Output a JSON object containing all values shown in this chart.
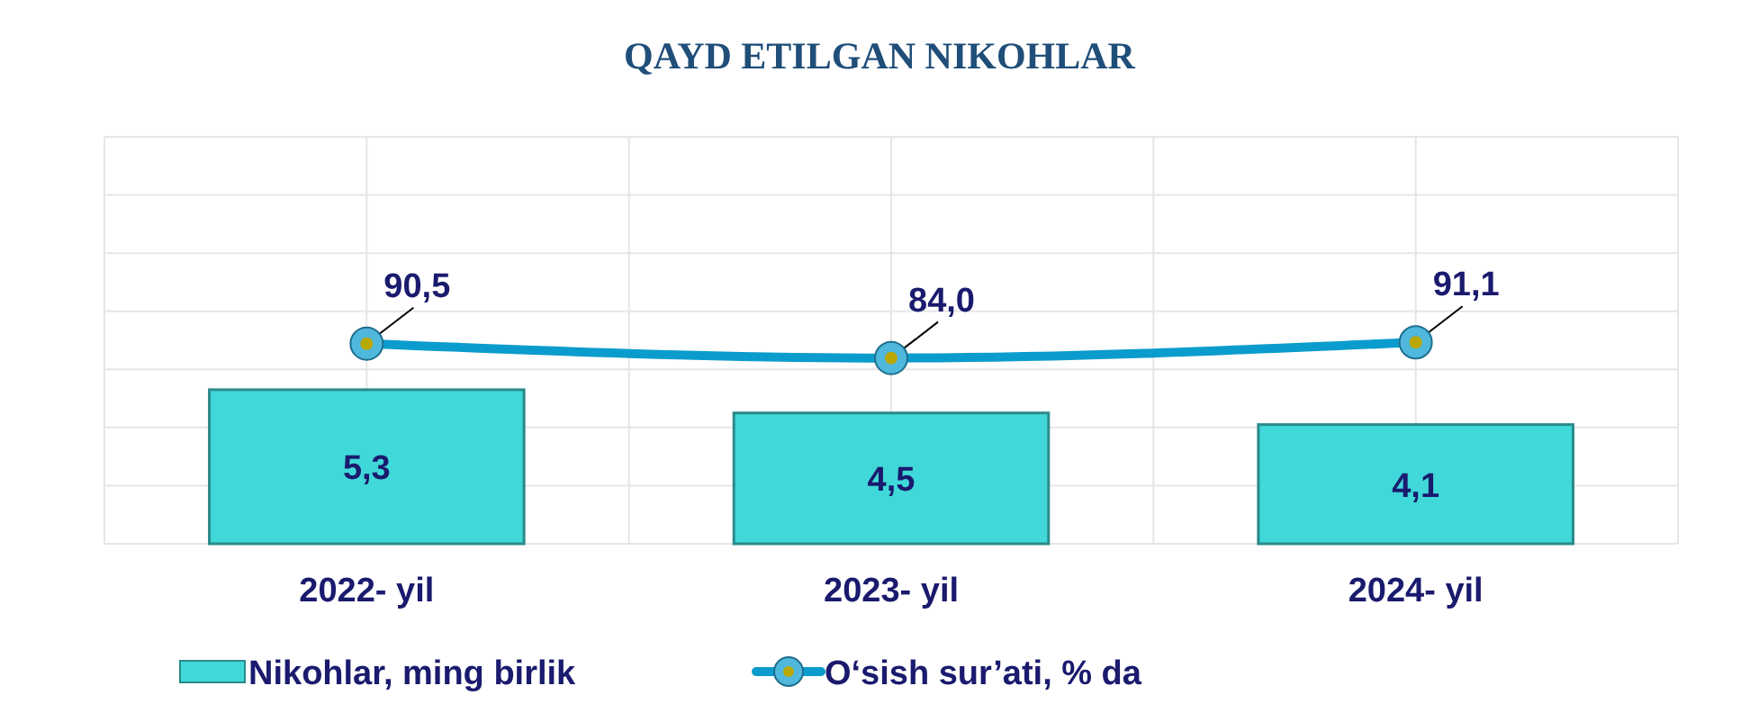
{
  "chart_data": {
    "type": "bar",
    "title": "QAYD ETILGAN NIKOHLAR",
    "categories": [
      "2022- yil",
      "2023- yil",
      "2024- yil"
    ],
    "series": [
      {
        "name": "Nikohlar, ming birlik",
        "color": "#40d8d8",
        "values": [
          5.3,
          4.5,
          4.1
        ],
        "value_labels": [
          "5,3",
          "4,5",
          "4,1"
        ]
      },
      {
        "name": "O‘sish sur’ati, % da",
        "type": "line",
        "axis": "y2",
        "color": "#0a9ccc",
        "marker": "circle",
        "values": [
          90.5,
          84.0,
          91.1
        ],
        "value_labels": [
          "90,5",
          "84,0",
          "91,1"
        ]
      }
    ],
    "ylim": [
      0,
      14
    ],
    "yticks": [
      {
        "value": 0,
        "label": null
      },
      {
        "value": 2,
        "label": null
      },
      {
        "value": 4,
        "label": null
      },
      {
        "value": 6,
        "label": null
      },
      {
        "value": 8,
        "label": null
      },
      {
        "value": 10,
        "label": null
      },
      {
        "value": 12,
        "label": null
      },
      {
        "value": 14,
        "label": null
      }
    ],
    "y2lim": [
      0,
      184
    ],
    "tick_labels": "x",
    "grid": true,
    "legend": "bottom"
  }
}
